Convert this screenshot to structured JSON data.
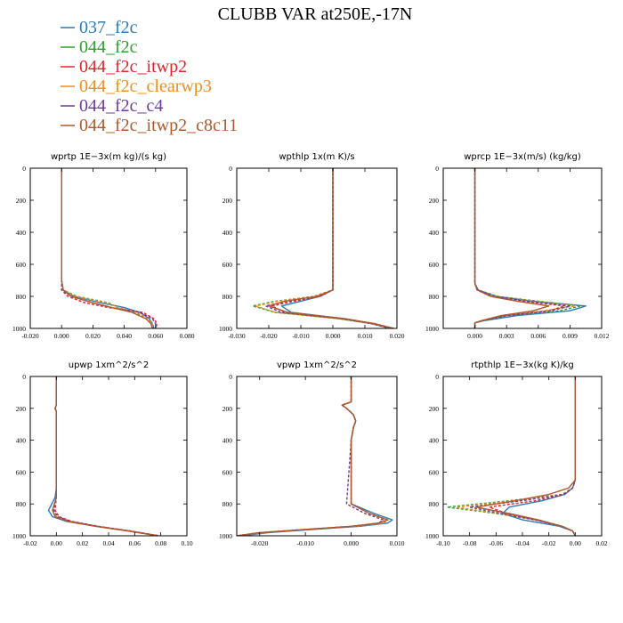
{
  "figure": {
    "title": "CLUBB VAR at250E,-17N"
  },
  "legend": {
    "placement": "top-left",
    "entries": [
      {
        "name": "037_f2c",
        "color": "#2b7bb9",
        "dash": "solid"
      },
      {
        "name": "044_f2c",
        "color": "#2ca02c",
        "dash": "dashed"
      },
      {
        "name": "044_f2c_itwp2",
        "color": "#e0242b",
        "dash": "dashed"
      },
      {
        "name": "044_f2c_clearwp3",
        "color": "#f28c1c",
        "dash": "dashed"
      },
      {
        "name": "044_f2c_c4",
        "color": "#6a3d9a",
        "dash": "dashed"
      },
      {
        "name": "044_f2c_itwp2_c8c11",
        "color": "#b0582b",
        "dash": "solid"
      }
    ]
  },
  "chart_data": [
    {
      "type": "line",
      "title": "wprtp  1E−3x(m kg)/(s kg)",
      "xlim": [
        -0.02,
        0.08
      ],
      "ylim": [
        1000,
        0
      ],
      "xticks": [
        -0.02,
        0.0,
        0.02,
        0.04,
        0.06,
        0.08
      ],
      "xtick_labels": [
        "-0.020",
        "0.000",
        "0.020",
        "0.040",
        "0.060",
        "0.080"
      ],
      "yticks": [
        0,
        200,
        400,
        600,
        800,
        1000
      ],
      "ytick_labels": [
        "0",
        "200",
        "400",
        "600",
        "800",
        "1000"
      ],
      "y": [
        0,
        700,
        760,
        800,
        840,
        870,
        900,
        940,
        970,
        1000
      ],
      "series": [
        {
          "name": "037_f2c",
          "x": [
            0,
            0,
            0.001,
            0.008,
            0.025,
            0.04,
            0.05,
            0.056,
            0.058,
            0.059
          ]
        },
        {
          "name": "044_f2c",
          "x": [
            0,
            0,
            0.001,
            0.01,
            0.03,
            0.036,
            0.047,
            0.055,
            0.058,
            0.058
          ]
        },
        {
          "name": "044_f2c_itwp2",
          "x": [
            0,
            0,
            0.0,
            0.004,
            0.015,
            0.03,
            0.052,
            0.059,
            0.061,
            0.06
          ]
        },
        {
          "name": "044_f2c_clearwp3",
          "x": [
            0,
            0,
            0.001,
            0.009,
            0.028,
            0.037,
            0.048,
            0.055,
            0.058,
            0.058
          ]
        },
        {
          "name": "044_f2c_c4",
          "x": [
            0,
            0,
            0.0,
            0.006,
            0.02,
            0.032,
            0.05,
            0.058,
            0.06,
            0.06
          ]
        },
        {
          "name": "044_f2c_itwp2_c8c11",
          "x": [
            0,
            0,
            0.001,
            0.006,
            0.02,
            0.032,
            0.045,
            0.054,
            0.057,
            0.058
          ]
        }
      ]
    },
    {
      "type": "line",
      "title": "wpthlp  1x(m K)/s",
      "xlim": [
        -0.03,
        0.02
      ],
      "ylim": [
        1000,
        0
      ],
      "xticks": [
        -0.03,
        -0.02,
        -0.01,
        0.0,
        0.01,
        0.02
      ],
      "xtick_labels": [
        "-0.030",
        "-0.020",
        "-0.010",
        "0.000",
        "0.010",
        "0.020"
      ],
      "yticks": [
        0,
        200,
        400,
        600,
        800,
        1000
      ],
      "ytick_labels": [
        "0",
        "200",
        "400",
        "600",
        "800",
        "1000"
      ],
      "y": [
        0,
        720,
        760,
        800,
        830,
        860,
        900,
        940,
        970,
        1000
      ],
      "series": [
        {
          "name": "037_f2c",
          "x": [
            0,
            0,
            0,
            -0.004,
            -0.01,
            -0.016,
            -0.013,
            0.004,
            0.012,
            0.018
          ]
        },
        {
          "name": "044_f2c",
          "x": [
            0,
            0,
            0,
            -0.006,
            -0.018,
            -0.025,
            -0.018,
            0.002,
            0.012,
            0.018
          ]
        },
        {
          "name": "044_f2c_itwp2",
          "x": [
            0,
            0,
            0,
            -0.004,
            -0.012,
            -0.019,
            -0.015,
            0.003,
            0.013,
            0.019
          ]
        },
        {
          "name": "044_f2c_clearwp3",
          "x": [
            0,
            0,
            0,
            -0.006,
            -0.017,
            -0.024,
            -0.018,
            0.002,
            0.012,
            0.018
          ]
        },
        {
          "name": "044_f2c_c4",
          "x": [
            0,
            0,
            0,
            -0.005,
            -0.014,
            -0.021,
            -0.016,
            0.003,
            0.012,
            0.018
          ]
        },
        {
          "name": "044_f2c_itwp2_c8c11",
          "x": [
            0,
            0,
            0,
            -0.005,
            -0.015,
            -0.02,
            -0.014,
            0.004,
            0.013,
            0.019
          ]
        }
      ]
    },
    {
      "type": "line",
      "title": "wprcp  1E−3x(m/s) (kg/kg)",
      "xlim": [
        -0.003,
        0.012
      ],
      "ylim": [
        1000,
        0
      ],
      "xticks": [
        0.0,
        0.003,
        0.006,
        0.009,
        0.012
      ],
      "xtick_labels": [
        "0.000",
        "0.003",
        "0.006",
        "0.009",
        "0.012"
      ],
      "yticks": [
        0,
        200,
        400,
        600,
        800,
        1000
      ],
      "ytick_labels": [
        "0",
        "200",
        "400",
        "600",
        "800",
        "1000"
      ],
      "y": [
        0,
        720,
        760,
        800,
        830,
        860,
        890,
        920,
        950,
        965,
        1000
      ],
      "series": [
        {
          "name": "037_f2c",
          "x": [
            0,
            0,
            0.0003,
            0.002,
            0.0055,
            0.0105,
            0.009,
            0.004,
            0.001,
            0,
            0
          ]
        },
        {
          "name": "044_f2c",
          "x": [
            0,
            0,
            0.0003,
            0.0022,
            0.006,
            0.01,
            0.008,
            0.003,
            0.0008,
            0,
            0
          ]
        },
        {
          "name": "044_f2c_itwp2",
          "x": [
            0,
            0,
            0.0002,
            0.0015,
            0.0045,
            0.0085,
            0.007,
            0.003,
            0.0008,
            0,
            0
          ]
        },
        {
          "name": "044_f2c_clearwp3",
          "x": [
            0,
            0,
            0.0003,
            0.002,
            0.0055,
            0.0095,
            0.0065,
            0.0025,
            0.0007,
            0,
            0
          ]
        },
        {
          "name": "044_f2c_c4",
          "x": [
            0,
            0,
            0.0003,
            0.0018,
            0.005,
            0.009,
            0.0072,
            0.003,
            0.0008,
            0,
            0
          ]
        },
        {
          "name": "044_f2c_itwp2_c8c11",
          "x": [
            0,
            0,
            0.0002,
            0.0015,
            0.004,
            0.007,
            0.0055,
            0.0025,
            0.0007,
            0,
            0
          ]
        }
      ]
    },
    {
      "type": "line",
      "title": "upwp  1xm^2/s^2",
      "xlim": [
        -0.02,
        0.1
      ],
      "ylim": [
        1000,
        0
      ],
      "xticks": [
        -0.02,
        0.0,
        0.02,
        0.04,
        0.06,
        0.08,
        0.1
      ],
      "xtick_labels": [
        "-0.02",
        "0.00",
        "0.02",
        "0.04",
        "0.06",
        "0.08",
        "0.10"
      ],
      "yticks": [
        0,
        200,
        400,
        600,
        800,
        1000
      ],
      "ytick_labels": [
        "0",
        "200",
        "400",
        "600",
        "800",
        "1000"
      ],
      "y": [
        0,
        180,
        200,
        220,
        700,
        760,
        840,
        880,
        910,
        940,
        970,
        1000
      ],
      "series": [
        {
          "name": "037_f2c",
          "x": [
            0,
            0,
            -0.001,
            0,
            0,
            -0.001,
            -0.006,
            -0.003,
            0.008,
            0.03,
            0.055,
            0.078
          ]
        },
        {
          "name": "044_f2c",
          "x": [
            0,
            0,
            -0.001,
            0,
            0,
            0,
            -0.002,
            0.0,
            0.01,
            0.03,
            0.055,
            0.078
          ]
        },
        {
          "name": "044_f2c_itwp2",
          "x": [
            0,
            0,
            -0.001,
            0,
            0,
            0,
            -0.001,
            0.002,
            0.012,
            0.032,
            0.057,
            0.079
          ]
        },
        {
          "name": "044_f2c_clearwp3",
          "x": [
            0,
            0,
            -0.001,
            0,
            0,
            0,
            -0.002,
            0.0,
            0.01,
            0.03,
            0.055,
            0.078
          ]
        },
        {
          "name": "044_f2c_c4",
          "x": [
            0,
            0,
            -0.001,
            0,
            0,
            0,
            -0.002,
            0.001,
            0.011,
            0.031,
            0.056,
            0.078
          ]
        },
        {
          "name": "044_f2c_itwp2_c8c11",
          "x": [
            0,
            0,
            -0.001,
            0,
            0,
            0,
            -0.003,
            -0.001,
            0.009,
            0.03,
            0.055,
            0.078
          ]
        }
      ]
    },
    {
      "type": "line",
      "title": "vpwp  1xm^2/s^2",
      "xlim": [
        -0.025,
        0.01
      ],
      "ylim": [
        1000,
        0
      ],
      "xticks": [
        -0.02,
        -0.01,
        0.0,
        0.01
      ],
      "xtick_labels": [
        "-0.020",
        "-0.010",
        "0.000",
        "0.010"
      ],
      "yticks": [
        0,
        200,
        400,
        600,
        800,
        1000
      ],
      "ytick_labels": [
        "0",
        "200",
        "400",
        "600",
        "800",
        "1000"
      ],
      "y": [
        0,
        160,
        180,
        200,
        240,
        280,
        320,
        400,
        800,
        860,
        900,
        920,
        940,
        960,
        980,
        1000
      ],
      "series": [
        {
          "name": "037_f2c",
          "x": [
            0,
            0,
            -0.002,
            -0.001,
            0.0005,
            0.001,
            0.0005,
            0,
            0,
            0.005,
            0.009,
            0.008,
            0.002,
            -0.008,
            -0.018,
            -0.024
          ]
        },
        {
          "name": "044_f2c",
          "x": [
            0,
            0,
            -0.002,
            -0.001,
            0.0005,
            0.001,
            0.0005,
            0,
            0,
            0.004,
            0.008,
            0.007,
            0.001,
            -0.009,
            -0.019,
            -0.025
          ]
        },
        {
          "name": "044_f2c_itwp2",
          "x": [
            0,
            0,
            -0.002,
            -0.001,
            0.0005,
            0.001,
            0.0005,
            0,
            0,
            0.004,
            0.008,
            0.007,
            0.001,
            -0.009,
            -0.019,
            -0.025
          ]
        },
        {
          "name": "044_f2c_clearwp3",
          "x": [
            0,
            0,
            -0.002,
            -0.001,
            0.0005,
            0.001,
            0.0005,
            0,
            0,
            0.004,
            0.008,
            0.007,
            0.001,
            -0.009,
            -0.019,
            -0.025
          ]
        },
        {
          "name": "044_f2c_c4",
          "x": [
            0,
            0,
            -0.002,
            -0.001,
            0.0005,
            0.001,
            0.0005,
            0,
            -0.001,
            0.003,
            0.007,
            0.006,
            0.0,
            -0.01,
            -0.02,
            -0.025
          ]
        },
        {
          "name": "044_f2c_itwp2_c8c11",
          "x": [
            0,
            0,
            -0.002,
            -0.001,
            0.0005,
            0.001,
            0.0005,
            0,
            0,
            0.004,
            0.008,
            0.006,
            0.0,
            -0.01,
            -0.02,
            -0.025
          ]
        }
      ]
    },
    {
      "type": "line",
      "title": "rtpthlp  1E−3x(kg K)/kg",
      "xlim": [
        -0.1,
        0.02
      ],
      "ylim": [
        1000,
        0
      ],
      "xticks": [
        -0.1,
        -0.08,
        -0.06,
        -0.04,
        -0.02,
        0.0,
        0.02
      ],
      "xtick_labels": [
        "-0.10",
        "-0.08",
        "-0.06",
        "-0.04",
        "-0.02",
        "0.00",
        "0.02"
      ],
      "yticks": [
        0,
        200,
        400,
        600,
        800,
        1000
      ],
      "ytick_labels": [
        "0",
        "200",
        "400",
        "600",
        "800",
        "1000"
      ],
      "y": [
        0,
        650,
        700,
        740,
        780,
        820,
        860,
        900,
        940,
        970,
        1000
      ],
      "series": [
        {
          "name": "037_f2c",
          "x": [
            0,
            0,
            -0.002,
            -0.008,
            -0.025,
            -0.05,
            -0.055,
            -0.04,
            -0.012,
            -0.002,
            0
          ]
        },
        {
          "name": "044_f2c",
          "x": [
            0,
            0,
            -0.002,
            -0.01,
            -0.05,
            -0.097,
            -0.06,
            -0.03,
            -0.01,
            -0.002,
            0
          ]
        },
        {
          "name": "044_f2c_itwp2",
          "x": [
            0,
            0,
            -0.002,
            -0.008,
            -0.03,
            -0.065,
            -0.052,
            -0.03,
            -0.01,
            -0.002,
            0
          ]
        },
        {
          "name": "044_f2c_clearwp3",
          "x": [
            0,
            0,
            -0.002,
            -0.01,
            -0.045,
            -0.09,
            -0.058,
            -0.03,
            -0.01,
            -0.002,
            0
          ]
        },
        {
          "name": "044_f2c_c4",
          "x": [
            0,
            0,
            -0.002,
            -0.009,
            -0.04,
            -0.08,
            -0.056,
            -0.031,
            -0.01,
            -0.002,
            0
          ]
        },
        {
          "name": "044_f2c_itwp2_c8c11",
          "x": [
            0,
            0,
            -0.005,
            -0.02,
            -0.045,
            -0.075,
            -0.05,
            -0.028,
            -0.01,
            -0.002,
            0
          ]
        }
      ]
    }
  ]
}
